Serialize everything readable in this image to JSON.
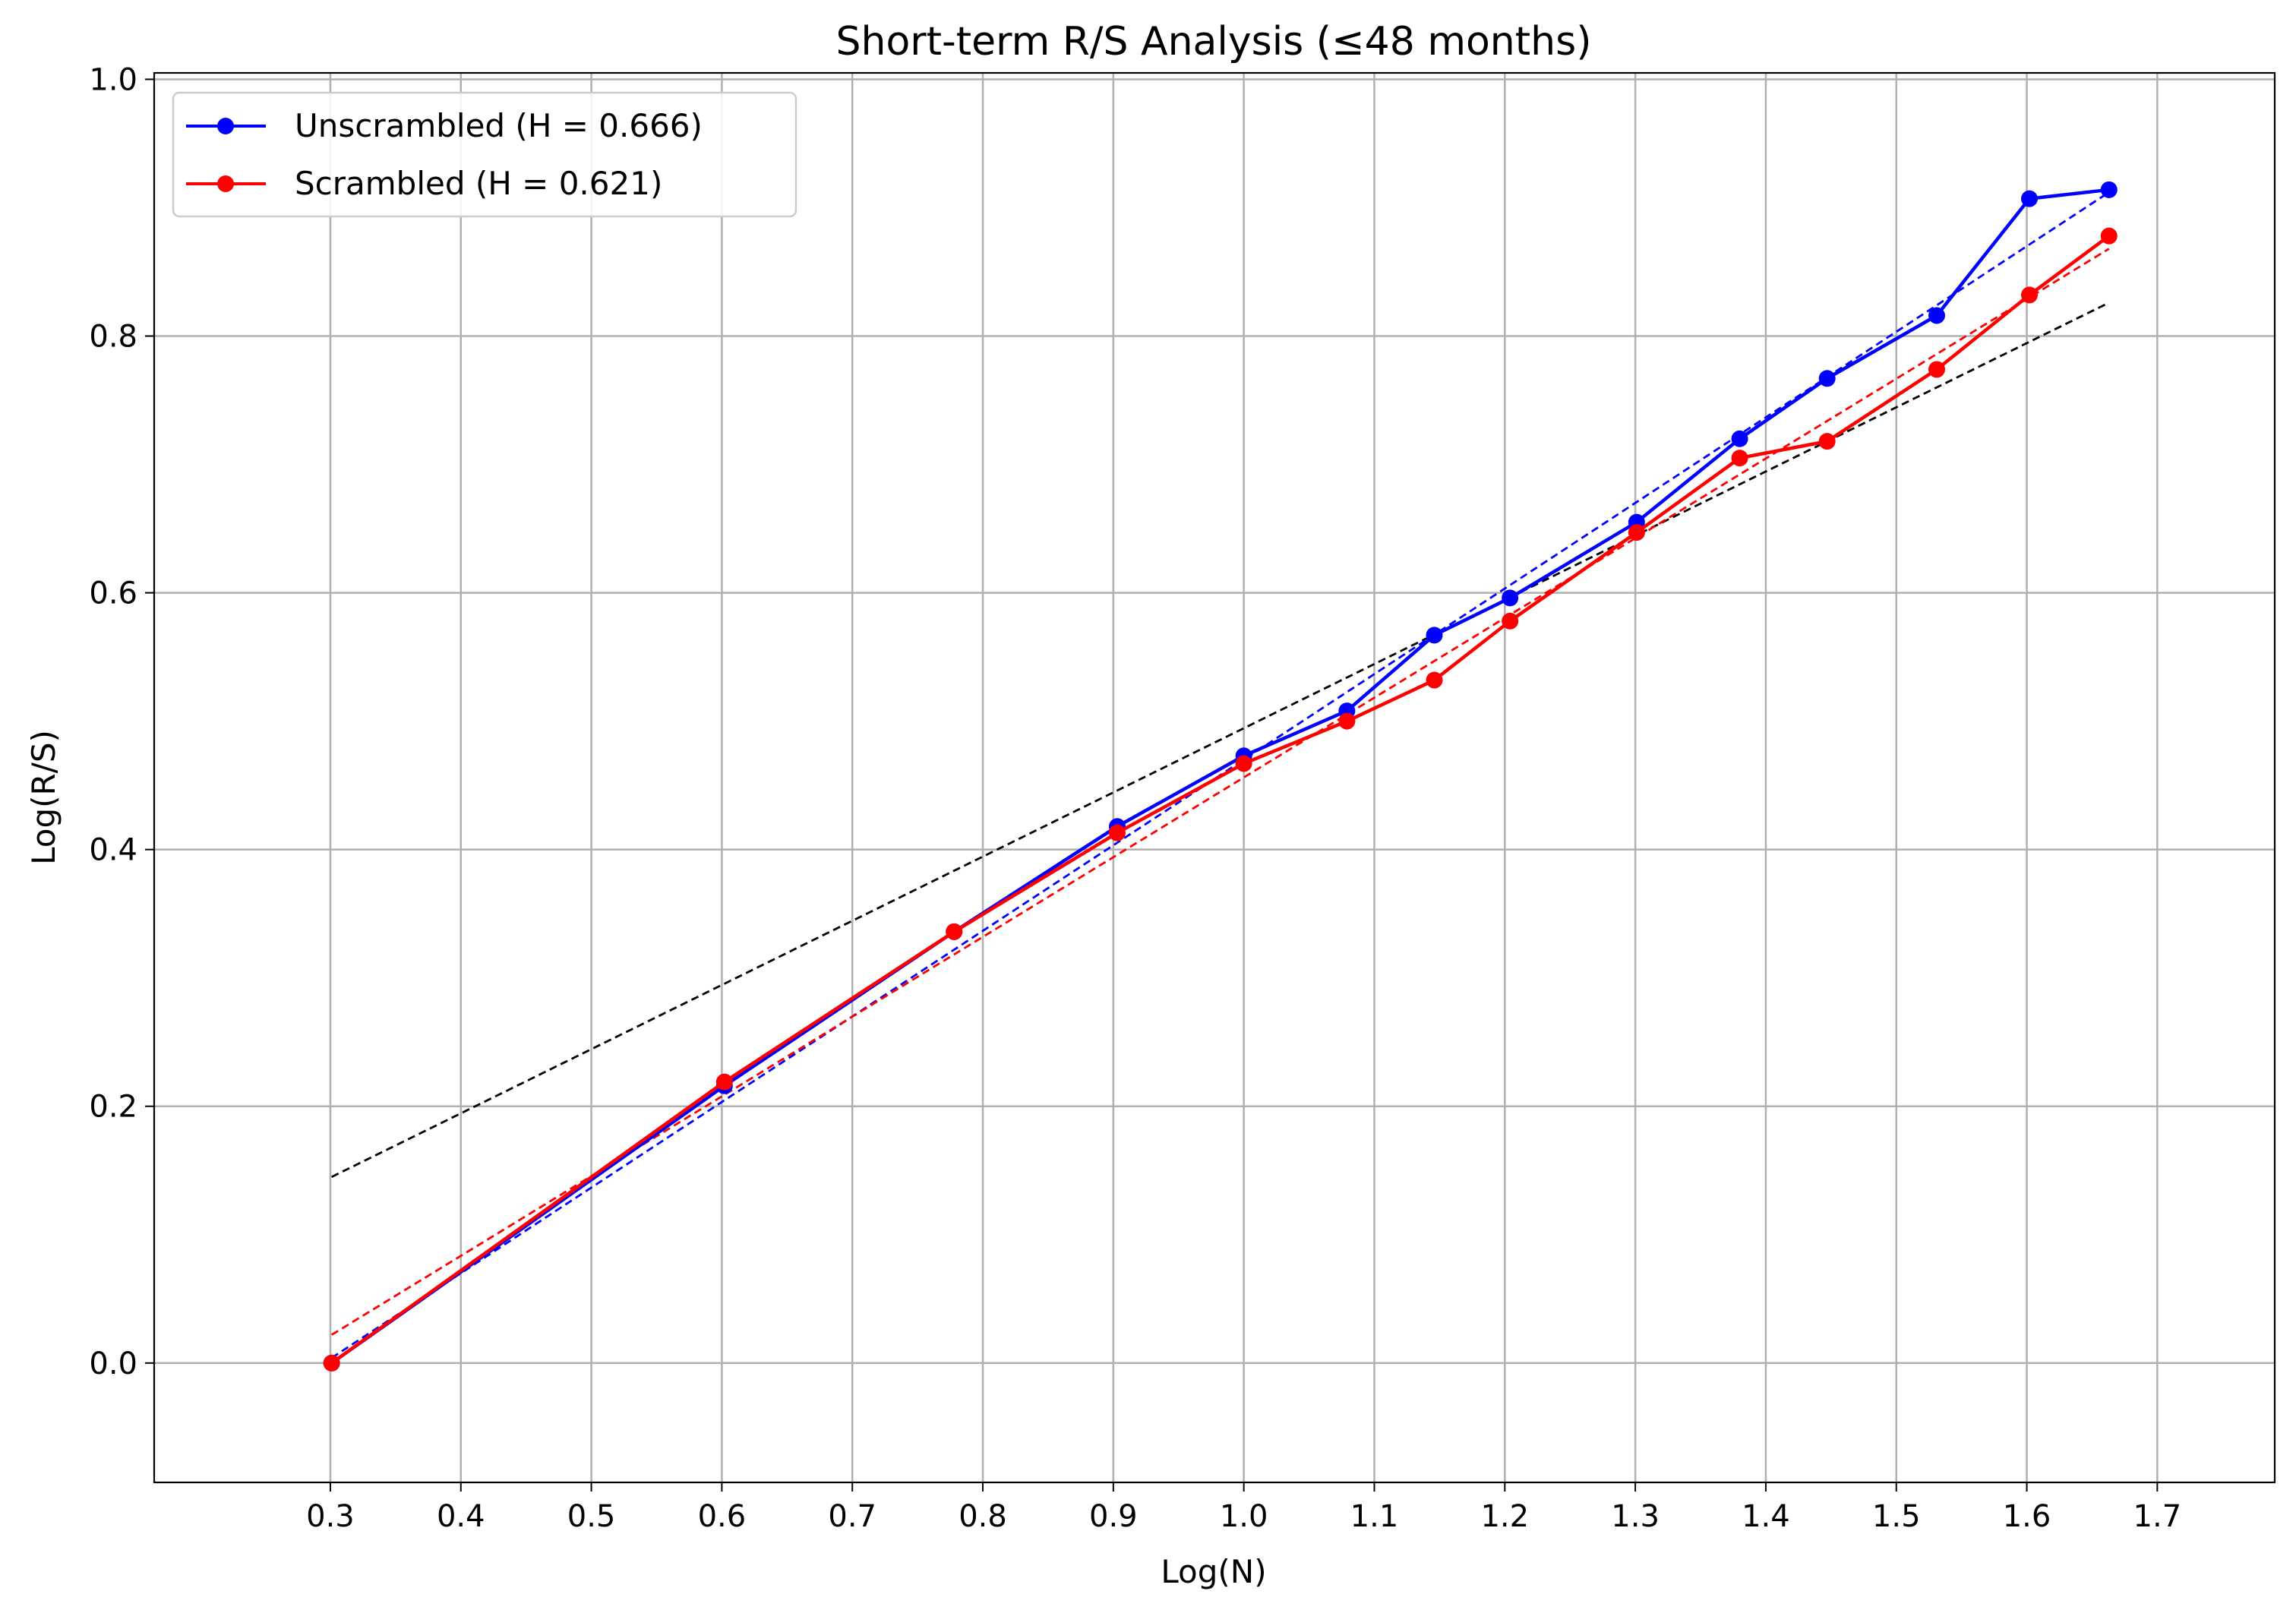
{
  "colors": {
    "unscrambled": "#0000ff",
    "scrambled": "#ff0000",
    "reference": "#000000",
    "grid": "#b0b0b0",
    "legend_border": "#cccccc"
  },
  "chart_data": {
    "type": "line",
    "title": "Short-term R/S Analysis (≤48 months)",
    "xlabel": "Log(N)",
    "ylabel": "Log(R/S)",
    "xlim": [
      0.165,
      1.79
    ],
    "ylim": [
      -0.093,
      1.005
    ],
    "x_ticks": [
      0.3,
      0.4,
      0.5,
      0.6,
      0.7,
      0.8,
      0.9,
      1.0,
      1.1,
      1.2,
      1.3,
      1.4,
      1.5,
      1.6,
      1.7
    ],
    "x_tick_labels": [
      "0.3",
      "0.4",
      "0.5",
      "0.6",
      "0.7",
      "0.8",
      "0.9",
      "1.0",
      "1.1",
      "1.2",
      "1.3",
      "1.4",
      "1.5",
      "1.6",
      "1.7"
    ],
    "y_ticks": [
      0.0,
      0.2,
      0.4,
      0.6,
      0.8,
      1.0
    ],
    "y_tick_labels": [
      "0.0",
      "0.2",
      "0.4",
      "0.6",
      "0.8",
      "1.0"
    ],
    "grid": true,
    "legend_position": "top-left",
    "x": [
      0.301,
      0.602,
      0.778,
      0.903,
      1.0,
      1.079,
      1.146,
      1.204,
      1.301,
      1.38,
      1.447,
      1.531,
      1.602,
      1.663
    ],
    "series": [
      {
        "name": "Unscrambled (H = 0.666)",
        "values": [
          0.0,
          0.216,
          0.336,
          0.418,
          0.473,
          0.508,
          0.567,
          0.596,
          0.655,
          0.72,
          0.767,
          0.816,
          0.907,
          0.914
        ]
      },
      {
        "name": "Scrambled (H = 0.621)",
        "values": [
          0.0,
          0.219,
          0.336,
          0.413,
          0.467,
          0.5,
          0.532,
          0.578,
          0.647,
          0.705,
          0.718,
          0.774,
          0.832,
          0.878
        ]
      }
    ],
    "fit_lines": [
      {
        "series": "Unscrambled (H = 0.666)",
        "x": [
          0.301,
          1.663
        ],
        "y": [
          0.004,
          0.912
        ]
      },
      {
        "series": "Scrambled (H = 0.621)",
        "x": [
          0.301,
          1.663
        ],
        "y": [
          0.022,
          0.868
        ]
      }
    ],
    "reference_line": {
      "x": [
        0.301,
        1.663
      ],
      "y": [
        0.145,
        0.826
      ]
    }
  }
}
